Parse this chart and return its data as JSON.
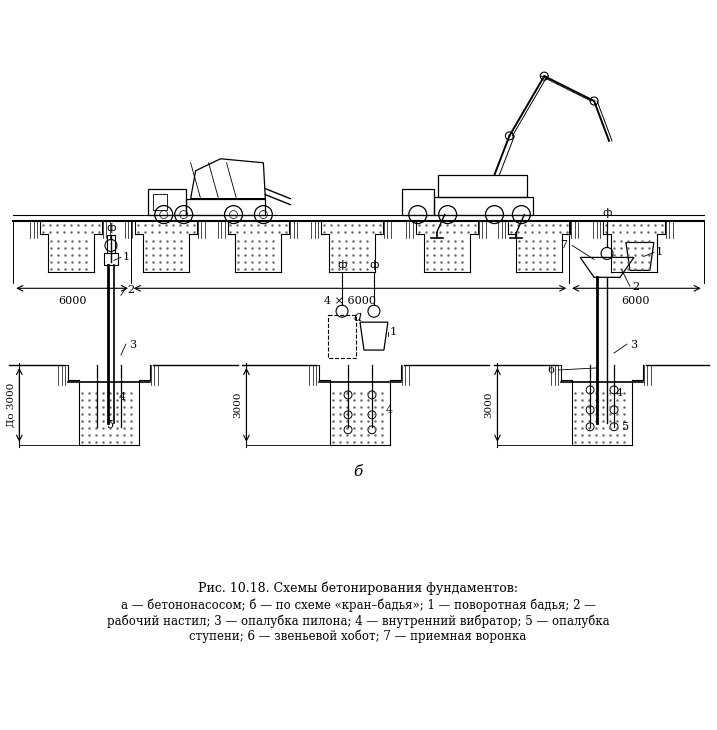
{
  "bg_color": "#ffffff",
  "line_color": "#000000",
  "fig_width": 7.17,
  "fig_height": 7.3,
  "caption_title": "Рис. 10.18. Схемы бетонирования фундаментов:",
  "caption_line2": "а — бетононасосом; б — по схеме «кран–бадья»; 1 — поворотная бадья; 2 —",
  "caption_line3": "рабочий настил; 3 — опалубка пилона; 4 — внутренний вибратор; 5 — опалубка",
  "caption_line4": "ступени; 6 — звеньевой хобот; 7 — приемная воронка",
  "label_a": "а",
  "label_b": "б",
  "dim_6000_left": "6000",
  "dim_4x6000": "4 × 6000",
  "dim_6000_right": "6000",
  "dim_do3000": "До 3000",
  "dim_3000": "3000"
}
